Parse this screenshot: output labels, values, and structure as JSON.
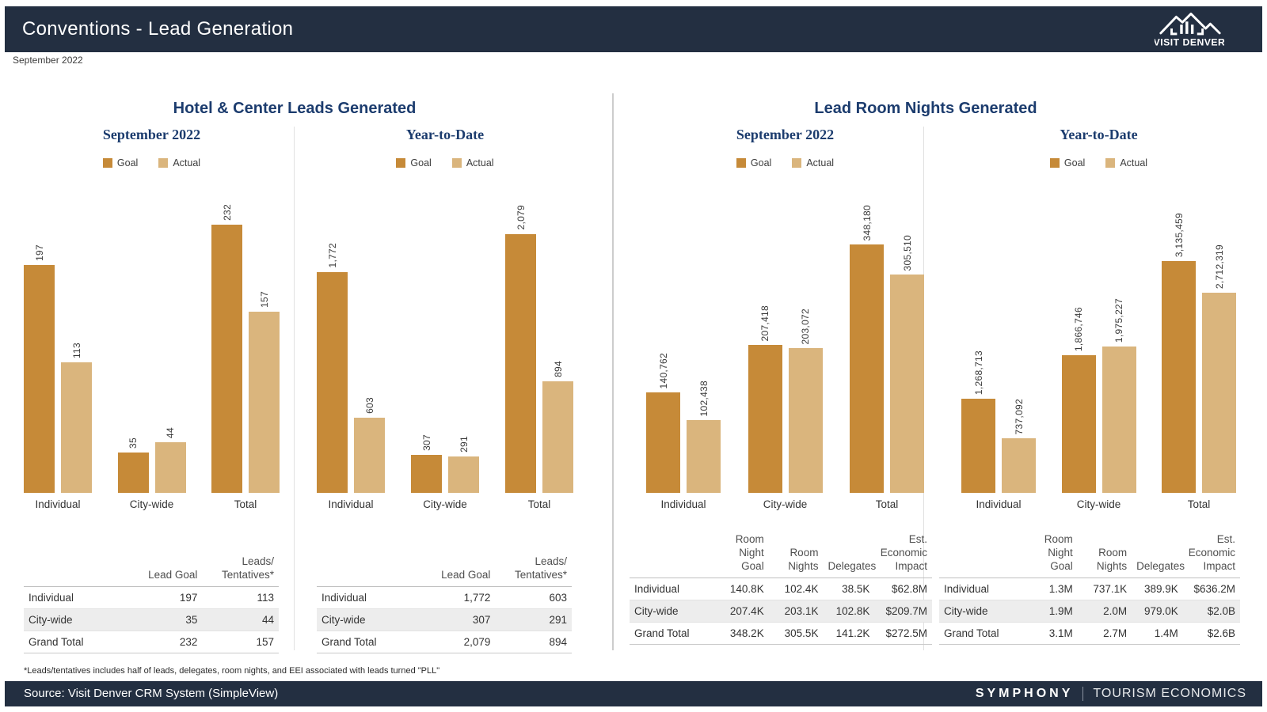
{
  "header": {
    "title": "Conventions - Lead Generation",
    "logo_text": "VISIT DENVER"
  },
  "period_label": "September 2022",
  "colors": {
    "goal": "#c68a38",
    "actual": "#dab57d",
    "navy_bar": "#232f41",
    "title_blue": "#1c3c6e"
  },
  "sections": {
    "leads": {
      "title": "Hotel & Center Leads Generated"
    },
    "room_nights": {
      "title": "Lead Room Nights Generated"
    }
  },
  "chart_data": [
    {
      "type": "bar",
      "panel": "Hotel & Center Leads Generated",
      "title": "September 2022",
      "categories": [
        "Individual",
        "City-wide",
        "Total"
      ],
      "series": [
        {
          "name": "Goal",
          "values": [
            197,
            35,
            232
          ],
          "labels": [
            "197",
            "35",
            "232"
          ]
        },
        {
          "name": "Actual",
          "values": [
            113,
            44,
            157
          ],
          "labels": [
            "113",
            "44",
            "157"
          ]
        }
      ],
      "legend_position": "top",
      "grid": false
    },
    {
      "type": "bar",
      "panel": "Hotel & Center Leads Generated",
      "title": "Year-to-Date",
      "categories": [
        "Individual",
        "City-wide",
        "Total"
      ],
      "series": [
        {
          "name": "Goal",
          "values": [
            1772,
            307,
            2079
          ],
          "labels": [
            "1,772",
            "307",
            "2,079"
          ]
        },
        {
          "name": "Actual",
          "values": [
            603,
            291,
            894
          ],
          "labels": [
            "603",
            "291",
            "894"
          ]
        }
      ],
      "legend_position": "top",
      "grid": false
    },
    {
      "type": "bar",
      "panel": "Lead Room Nights Generated",
      "title": "September 2022",
      "categories": [
        "Individual",
        "City-wide",
        "Total"
      ],
      "series": [
        {
          "name": "Goal",
          "values": [
            140762,
            207418,
            348180
          ],
          "labels": [
            "140,762",
            "207,418",
            "348,180"
          ]
        },
        {
          "name": "Actual",
          "values": [
            102438,
            203072,
            305510
          ],
          "labels": [
            "102,438",
            "203,072",
            "305,510"
          ]
        }
      ],
      "legend_position": "top",
      "grid": false
    },
    {
      "type": "bar",
      "panel": "Lead Room Nights Generated",
      "title": "Year-to-Date",
      "categories": [
        "Individual",
        "City-wide",
        "Total"
      ],
      "series": [
        {
          "name": "Goal",
          "values": [
            1268713,
            1866746,
            3135459
          ],
          "labels": [
            "1,268,713",
            "1,866,746",
            "3,135,459"
          ]
        },
        {
          "name": "Actual",
          "values": [
            737092,
            1975227,
            2712319
          ],
          "labels": [
            "737,092",
            "1,975,227",
            "2,712,319"
          ]
        }
      ],
      "legend_position": "top",
      "grid": false
    }
  ],
  "tables": [
    {
      "columns": [
        "",
        "Lead Goal",
        "Leads/ Tentatives*"
      ],
      "rows": [
        [
          "Individual",
          "197",
          "113"
        ],
        [
          "City-wide",
          "35",
          "44"
        ],
        [
          "Grand Total",
          "232",
          "157"
        ]
      ]
    },
    {
      "columns": [
        "",
        "Lead Goal",
        "Leads/ Tentatives*"
      ],
      "rows": [
        [
          "Individual",
          "1,772",
          "603"
        ],
        [
          "City-wide",
          "307",
          "291"
        ],
        [
          "Grand Total",
          "2,079",
          "894"
        ]
      ]
    },
    {
      "columns": [
        "",
        "Room Night Goal",
        "Room Nights",
        "Delegates",
        "Est. Economic Impact"
      ],
      "rows": [
        [
          "Individual",
          "140.8K",
          "102.4K",
          "38.5K",
          "$62.8M"
        ],
        [
          "City-wide",
          "207.4K",
          "203.1K",
          "102.8K",
          "$209.7M"
        ],
        [
          "Grand Total",
          "348.2K",
          "305.5K",
          "141.2K",
          "$272.5M"
        ]
      ]
    },
    {
      "columns": [
        "",
        "Room Night Goal",
        "Room Nights",
        "Delegates",
        "Est. Economic Impact"
      ],
      "rows": [
        [
          "Individual",
          "1.3M",
          "737.1K",
          "389.9K",
          "$636.2M"
        ],
        [
          "City-wide",
          "1.9M",
          "2.0M",
          "979.0K",
          "$2.0B"
        ],
        [
          "Grand Total",
          "3.1M",
          "2.7M",
          "1.4M",
          "$2.6B"
        ]
      ]
    }
  ],
  "footnote": "*Leads/tentatives includes half of leads, delegates, room nights, and EEI associated with leads turned \"PLL\"",
  "footer": {
    "source": "Source: Visit Denver CRM System (SimpleView)",
    "brand_bold": "SYMPHONY",
    "brand_light": "TOURISM ECONOMICS"
  }
}
